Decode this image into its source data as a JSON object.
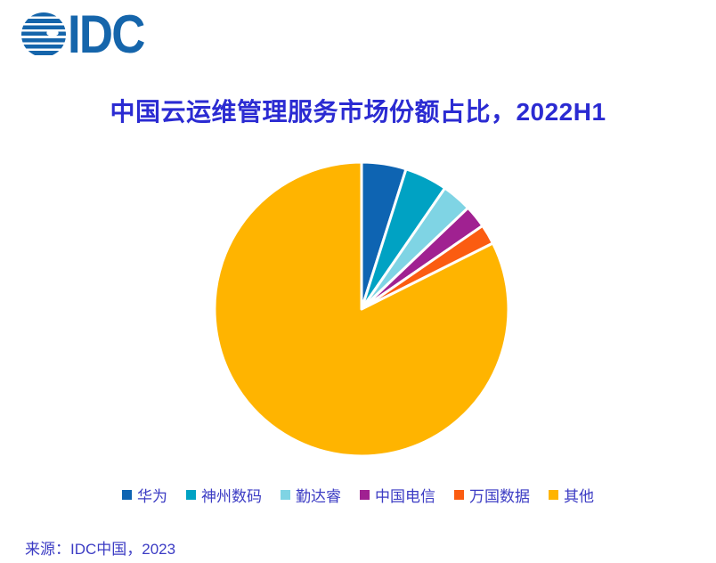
{
  "logo": {
    "text": "IDC",
    "icon": "idc-globe-icon",
    "color": "#1565ab"
  },
  "source": "来源：IDC中国，2023",
  "colors": {
    "title_text": "#2b2bd2",
    "legend_text": "#3c3cc4",
    "source_text": "#3c3cc4",
    "slice_border": "#ffffff",
    "logo_blue": "#1565ab"
  },
  "chart_data": {
    "type": "pie",
    "title": "中国云运维管理服务市场份额占比，2022H1",
    "unit": "percent",
    "start_angle": "12-oclock",
    "direction": "clockwise",
    "legend_position": "bottom",
    "data_labels_shown": false,
    "slices": [
      {
        "label": "华为",
        "value": 4.9,
        "color": "#0e64b2"
      },
      {
        "label": "神州数码",
        "value": 4.7,
        "color": "#00a2c3"
      },
      {
        "label": "勤达睿",
        "value": 3.3,
        "color": "#7fd4e4"
      },
      {
        "label": "中国电信",
        "value": 2.5,
        "color": "#a02191"
      },
      {
        "label": "万国数据",
        "value": 2.2,
        "color": "#fb5c11"
      },
      {
        "label": "其他",
        "value": 82.4,
        "color": "#ffb400"
      }
    ]
  }
}
